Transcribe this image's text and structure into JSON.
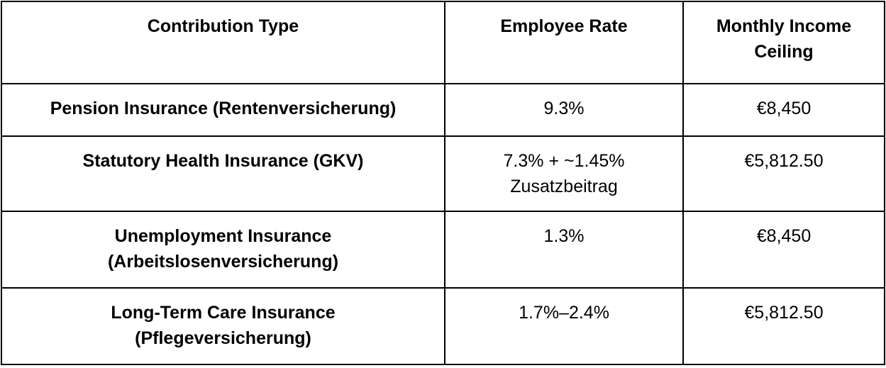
{
  "table": {
    "headers": {
      "type": "Contribution Type",
      "rate": "Employee Rate",
      "ceiling_line1": "Monthly Income",
      "ceiling_line2": "Ceiling"
    },
    "rows": [
      {
        "type_line1": "Pension Insurance (Rentenversicherung)",
        "rate_line1": "9.3%",
        "ceiling": "€8,450"
      },
      {
        "type_line1": "Statutory Health Insurance (GKV)",
        "rate_line1": "7.3% + ~1.45%",
        "rate_line2": "Zusatzbeitrag",
        "ceiling": "€5,812.50"
      },
      {
        "type_line1": "Unemployment Insurance",
        "type_line2": "(Arbeitslosenversicherung)",
        "rate_line1": "1.3%",
        "ceiling": "€8,450"
      },
      {
        "type_line1": "Long-Term Care Insurance",
        "type_line2": "(Pflegeversicherung)",
        "rate_line1": "1.7%–2.4%",
        "ceiling": "€5,812.50"
      }
    ]
  }
}
